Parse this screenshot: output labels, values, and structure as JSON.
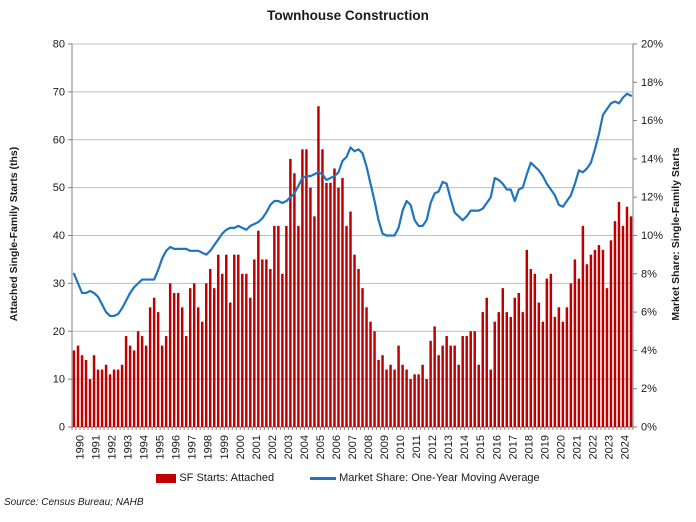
{
  "title": "Townhouse Construction",
  "source": "Source: Census Bureau; NAHB",
  "colors": {
    "bar": "#C00000",
    "line": "#1F74C0",
    "gridline": "#BFBFBF",
    "axis": "#808080",
    "text": "#1a1a1a"
  },
  "left_axis": {
    "label": "Attached Single-Family Starts (ths)",
    "ticks": [
      0,
      10,
      20,
      30,
      40,
      50,
      60,
      70,
      80
    ],
    "min": 0,
    "max": 80
  },
  "right_axis": {
    "label": "Market Share: Single-Family Starts",
    "ticks": [
      "0%",
      "2%",
      "4%",
      "6%",
      "8%",
      "10%",
      "12%",
      "14%",
      "16%",
      "18%",
      "20%"
    ],
    "min": 0,
    "max": 20
  },
  "legend": [
    {
      "label": "SF Starts: Attached",
      "color": "#C00000",
      "type": "bar"
    },
    {
      "label": "Market Share: One-Year Moving Average",
      "color": "#1F74C0",
      "type": "line"
    }
  ],
  "chart_data": {
    "type": "bar",
    "frequency": "quarterly",
    "x_start_year": 1990,
    "categories_years": [
      "1990",
      "1991",
      "1992",
      "1993",
      "1994",
      "1995",
      "1996",
      "1997",
      "1998",
      "1999",
      "2000",
      "2001",
      "2002",
      "2003",
      "2004",
      "2005",
      "2006",
      "2007",
      "2008",
      "2009",
      "2010",
      "2011",
      "2012",
      "2013",
      "2014",
      "2015",
      "2016",
      "2017",
      "2018",
      "2019",
      "2020",
      "2021",
      "2022",
      "2023",
      "2024"
    ],
    "left_ylim": [
      0,
      80
    ],
    "right_ylim": [
      0,
      20
    ],
    "grid": true,
    "legend_position": "bottom",
    "series": [
      {
        "name": "SF Starts: Attached",
        "type": "bar",
        "axis": "left",
        "unit": "thousands of starts",
        "values": [
          16,
          17,
          15,
          14,
          10,
          15,
          12,
          12,
          13,
          11,
          12,
          12,
          13,
          19,
          17,
          16,
          20,
          19,
          17,
          25,
          27,
          24,
          17,
          19,
          30,
          28,
          28,
          25,
          19,
          29,
          30,
          25,
          22,
          30,
          33,
          29,
          36,
          32,
          36,
          26,
          36,
          36,
          32,
          32,
          27,
          35,
          41,
          35,
          35,
          33,
          42,
          42,
          32,
          42,
          56,
          53,
          42,
          58,
          58,
          50,
          44,
          67,
          58,
          51,
          51,
          54,
          50,
          52,
          42,
          45,
          36,
          33,
          29,
          25,
          22,
          20,
          14,
          15,
          12,
          13,
          12,
          17,
          13,
          12,
          10,
          11,
          11,
          13,
          10,
          18,
          21,
          15,
          17,
          19,
          17,
          17,
          13,
          19,
          19,
          20,
          20,
          13,
          24,
          27,
          12,
          22,
          24,
          29,
          24,
          23,
          27,
          28,
          24,
          37,
          33,
          32,
          26,
          22,
          31,
          32,
          23,
          25,
          22,
          25,
          30,
          35,
          31,
          42,
          34,
          36,
          37,
          38,
          37,
          29,
          39,
          43,
          47,
          42,
          46,
          44
        ]
      },
      {
        "name": "Market Share: One-Year Moving Average",
        "type": "line",
        "axis": "right",
        "unit": "percent",
        "values": [
          8.0,
          7.5,
          7.0,
          7.0,
          7.1,
          7.0,
          6.8,
          6.4,
          6.0,
          5.8,
          5.8,
          5.9,
          6.2,
          6.6,
          7.0,
          7.3,
          7.5,
          7.7,
          7.7,
          7.7,
          7.7,
          8.2,
          8.8,
          9.2,
          9.4,
          9.3,
          9.3,
          9.3,
          9.3,
          9.2,
          9.2,
          9.2,
          9.1,
          9.0,
          9.2,
          9.5,
          9.8,
          10.1,
          10.3,
          10.4,
          10.4,
          10.5,
          10.4,
          10.3,
          10.5,
          10.6,
          10.7,
          10.9,
          11.2,
          11.6,
          11.8,
          11.8,
          11.7,
          11.8,
          12.0,
          12.2,
          12.6,
          13.0,
          13.1,
          13.1,
          13.2,
          13.3,
          13.2,
          12.9,
          13.0,
          13.1,
          13.3,
          13.9,
          14.1,
          14.6,
          14.4,
          14.5,
          14.3,
          13.6,
          12.7,
          11.8,
          10.8,
          10.1,
          10.0,
          10.0,
          10.0,
          10.4,
          11.3,
          11.8,
          11.6,
          10.8,
          10.5,
          10.5,
          10.8,
          11.7,
          12.2,
          12.3,
          12.8,
          12.7,
          11.9,
          11.2,
          11.0,
          10.8,
          11.0,
          11.3,
          11.3,
          11.3,
          11.4,
          11.7,
          12.0,
          13.0,
          12.9,
          12.7,
          12.4,
          12.4,
          11.8,
          12.4,
          12.5,
          13.2,
          13.8,
          13.6,
          13.4,
          13.1,
          12.7,
          12.4,
          12.1,
          11.6,
          11.5,
          11.8,
          12.1,
          12.7,
          13.4,
          13.3,
          13.5,
          13.8,
          14.5,
          15.3,
          16.3,
          16.6,
          16.9,
          17.0,
          16.9,
          17.2,
          17.4,
          17.3
        ]
      }
    ]
  }
}
